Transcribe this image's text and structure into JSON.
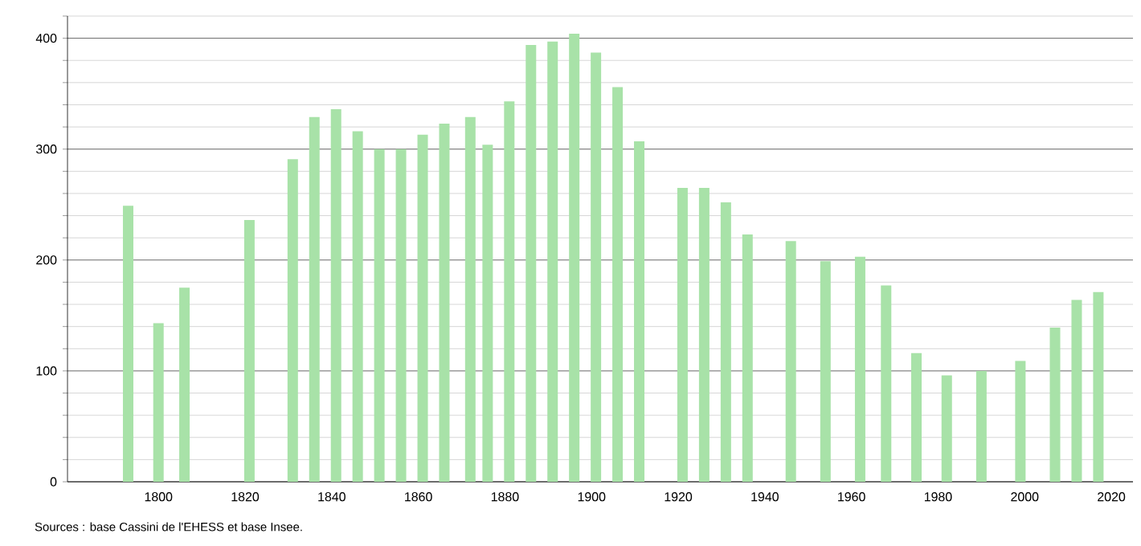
{
  "chart_data": {
    "type": "bar",
    "color": "#a8e2a8",
    "x": [
      1793,
      1800,
      1806,
      1821,
      1831,
      1836,
      1841,
      1846,
      1851,
      1856,
      1861,
      1866,
      1872,
      1876,
      1881,
      1886,
      1891,
      1896,
      1901,
      1906,
      1911,
      1921,
      1926,
      1931,
      1936,
      1946,
      1954,
      1962,
      1968,
      1975,
      1982,
      1990,
      1999,
      2007,
      2012,
      2017
    ],
    "values": [
      249,
      143,
      175,
      236,
      291,
      329,
      336,
      316,
      300,
      300,
      313,
      323,
      329,
      304,
      343,
      394,
      397,
      404,
      387,
      356,
      307,
      265,
      265,
      252,
      223,
      217,
      199,
      203,
      177,
      116,
      96,
      100,
      109,
      139,
      164,
      171
    ],
    "xlim": [
      1779,
      2025
    ],
    "xticks": [
      1800,
      1820,
      1840,
      1860,
      1880,
      1900,
      1920,
      1940,
      1960,
      1980,
      2000,
      2020
    ],
    "ylim": [
      0,
      420
    ],
    "yticks": [
      0,
      {
        "value": 20,
        "label": null
      },
      {
        "value": 40,
        "label": null
      },
      {
        "value": 60,
        "label": null
      },
      {
        "value": 80,
        "label": null
      },
      100,
      {
        "value": 120,
        "label": null
      },
      {
        "value": 140,
        "label": null
      },
      {
        "value": 160,
        "label": null
      },
      {
        "value": 180,
        "label": null
      },
      200,
      {
        "value": 220,
        "label": null
      },
      {
        "value": 240,
        "label": null
      },
      {
        "value": 260,
        "label": null
      },
      {
        "value": 280,
        "label": null
      },
      300,
      {
        "value": 320,
        "label": null
      },
      {
        "value": 340,
        "label": null
      },
      {
        "value": 360,
        "label": null
      },
      {
        "value": 380,
        "label": null
      },
      400,
      {
        "value": 420,
        "label": null
      }
    ],
    "grid": "y",
    "annotations": [
      "Sources : base Cassini de l'EHESS et base Insee."
    ]
  }
}
